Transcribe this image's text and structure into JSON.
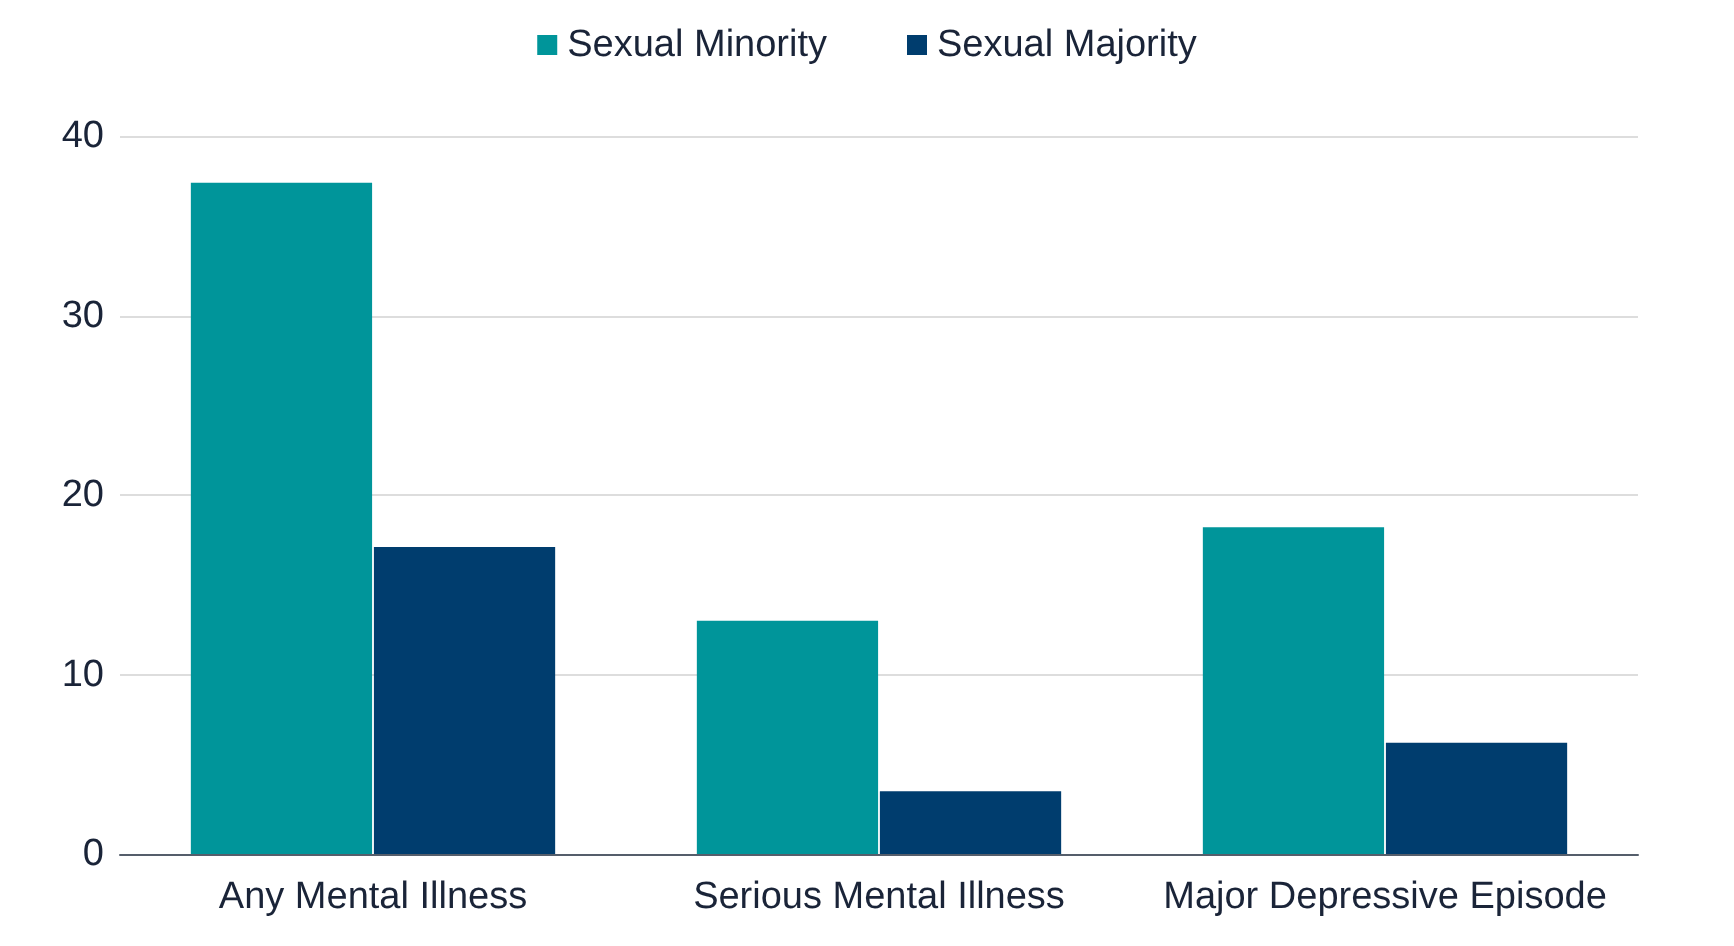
{
  "chart_data": {
    "type": "bar",
    "categories": [
      "Any Mental Illness",
      "Serious Mental Illness",
      "Major Depressive Episode"
    ],
    "series": [
      {
        "name": "Sexual Minority",
        "color": "#00959a",
        "values": [
          37.4,
          13.0,
          18.2
        ]
      },
      {
        "name": "Sexual Majority",
        "color": "#003d6e",
        "values": [
          17.1,
          3.5,
          6.2
        ]
      }
    ],
    "ylim": [
      0,
      40
    ],
    "yticks": [
      0,
      10,
      20,
      30,
      40
    ],
    "grid": "y",
    "legend": "top"
  }
}
